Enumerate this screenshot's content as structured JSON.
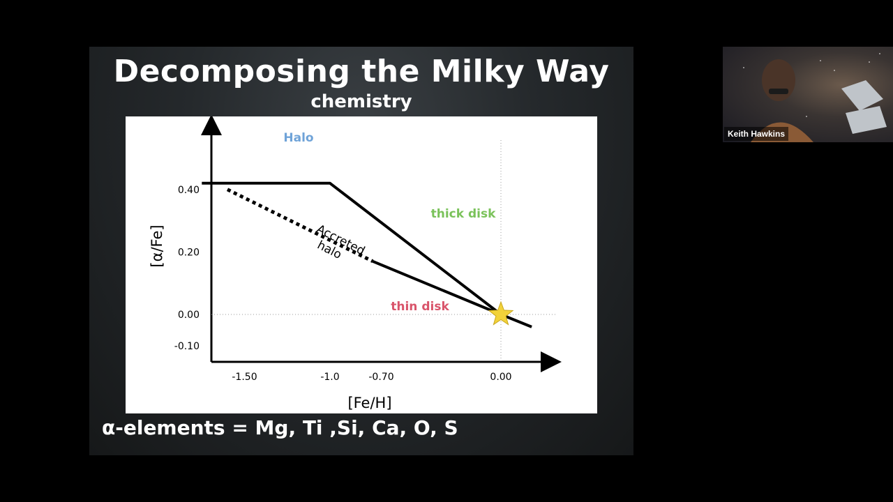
{
  "slide": {
    "title": "Decomposing the Milky Way",
    "subtitle": "chemistry",
    "footer": "α-elements = Mg, Ti ,Si, Ca, O, S"
  },
  "chart_data": {
    "type": "line",
    "xlabel": "[Fe/H]",
    "ylabel": "[α/Fe]",
    "x_ticks": [
      "-1.50",
      "-1.0",
      "-0.70",
      "0.00"
    ],
    "y_ticks": [
      "0.40",
      "0.20",
      "0.00",
      "-0.10"
    ],
    "region_labels": {
      "halo": "Halo",
      "thick_disk": "thick disk",
      "thin_disk": "thin disk",
      "accreted_halo_line1": "Accreted",
      "accreted_halo_line2": "halo"
    },
    "series": [
      {
        "values": [
          [
            -1.75,
            0.42
          ],
          [
            -1.0,
            0.42
          ],
          [
            0.0,
            0.0
          ],
          [
            0.18,
            -0.04
          ]
        ]
      },
      {
        "values": [
          [
            -0.75,
            0.17
          ],
          [
            0.0,
            0.0
          ]
        ]
      },
      {
        "values": [
          [
            -1.6,
            0.4
          ],
          [
            -0.75,
            0.17
          ]
        ]
      }
    ],
    "colors": {
      "halo": "#6fa3d8",
      "thick_disk": "#7ac25a",
      "thin_disk": "#d9546a",
      "star": "#f2d23a"
    }
  },
  "video": {
    "participant_name": "Keith Hawkins"
  }
}
